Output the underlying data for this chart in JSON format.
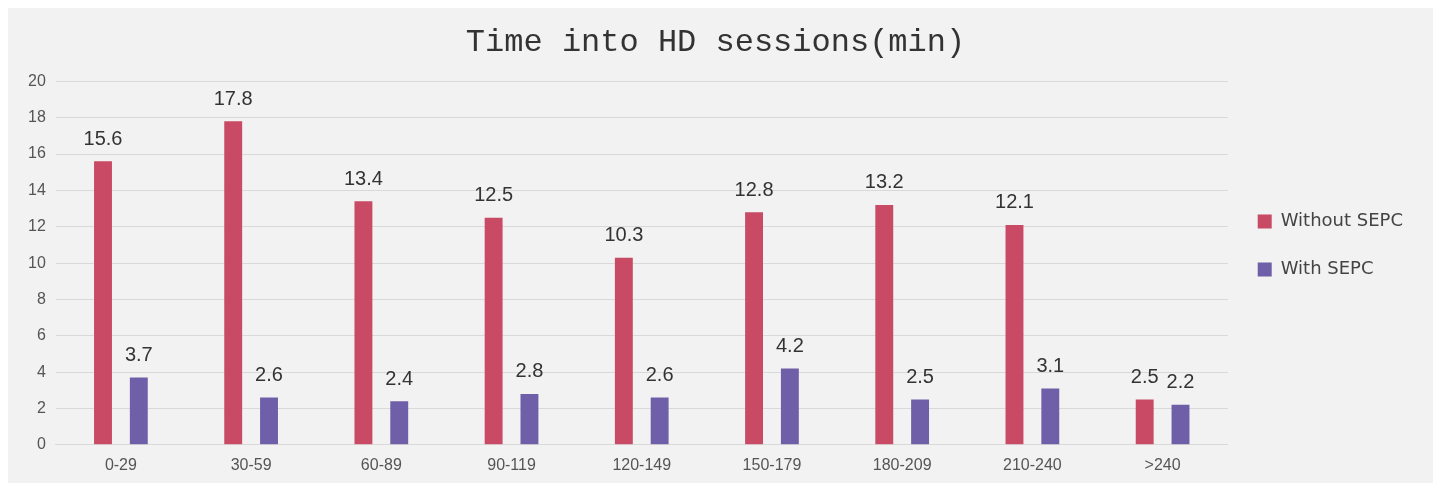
{
  "chart_data": {
    "type": "bar",
    "title": "Time into HD sessions(min)",
    "categories": [
      "0-29",
      "30-59",
      "60-89",
      "90-119",
      "120-149",
      "150-179",
      "180-209",
      "210-240",
      ">240"
    ],
    "series": [
      {
        "name": "Without SEPC",
        "color": "#c84a64",
        "values": [
          15.6,
          17.8,
          13.4,
          12.5,
          10.3,
          12.8,
          13.2,
          12.1,
          2.5
        ]
      },
      {
        "name": "With SEPC",
        "color": "#6f5fa8",
        "values": [
          3.7,
          2.6,
          2.4,
          2.8,
          2.6,
          4.2,
          2.5,
          3.1,
          2.2
        ]
      }
    ],
    "ylim": [
      0,
      20
    ],
    "yticks": [
      0,
      2,
      4,
      6,
      8,
      10,
      12,
      14,
      16,
      18,
      20
    ],
    "grid": "y",
    "legend": "right",
    "data_labels": true
  }
}
